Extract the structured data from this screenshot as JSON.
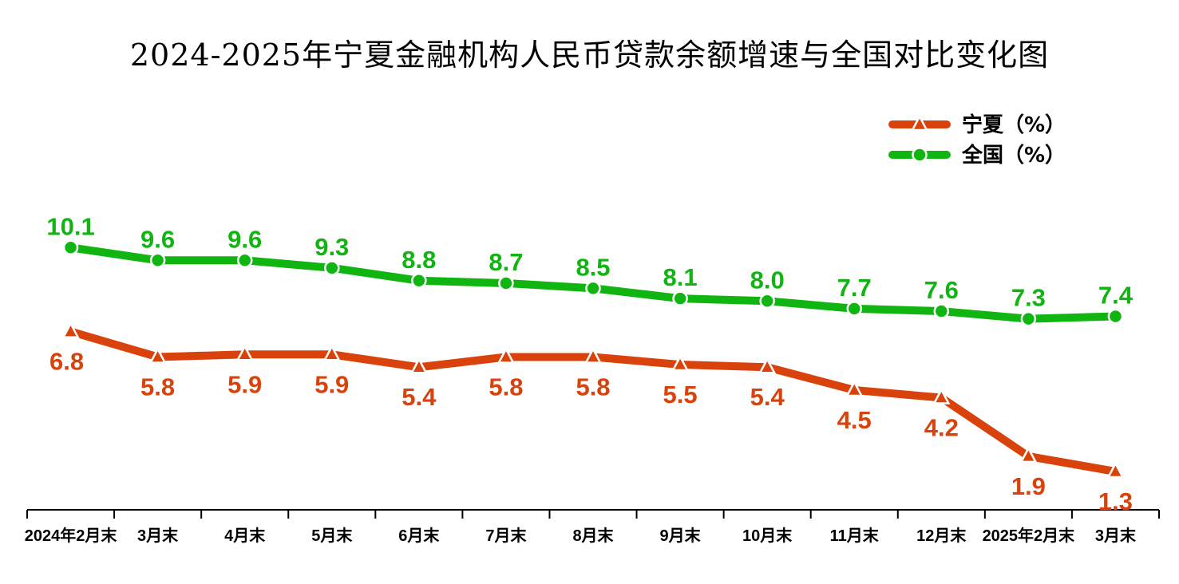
{
  "chart_data": {
    "type": "line",
    "title": "2024-2025年宁夏金融机构人民币贷款余额增速与全国对比变化图",
    "categories": [
      "2024年2月末",
      "3月末",
      "4月末",
      "5月末",
      "6月末",
      "7月末",
      "8月末",
      "9月末",
      "10月末",
      "11月末",
      "12月末",
      "2025年2月末",
      "3月末"
    ],
    "series": [
      {
        "name": "宁夏（%）",
        "color": "#d9420b",
        "marker": "triangle",
        "values": [
          6.8,
          5.8,
          5.9,
          5.9,
          5.4,
          5.8,
          5.8,
          5.5,
          5.4,
          4.5,
          4.2,
          1.9,
          1.3
        ],
        "labels": [
          "6.8",
          "5.8",
          "5.9",
          "5.9",
          "5.4",
          "5.8",
          "5.8",
          "5.5",
          "5.4",
          "4.5",
          "4.2",
          "1.9",
          "1.3"
        ]
      },
      {
        "name": "全国（%）",
        "color": "#11b511",
        "marker": "circle",
        "values": [
          10.1,
          9.6,
          9.6,
          9.3,
          8.8,
          8.7,
          8.5,
          8.1,
          8.0,
          7.7,
          7.6,
          7.3,
          7.4
        ],
        "labels": [
          "10.1",
          "9.6",
          "9.6",
          "9.3",
          "8.8",
          "8.7",
          "8.5",
          "8.1",
          "8.0",
          "7.7",
          "7.6",
          "7.3",
          "7.4"
        ]
      }
    ],
    "xlabel": "",
    "ylabel": "",
    "legend": "top-right",
    "grid": false
  }
}
